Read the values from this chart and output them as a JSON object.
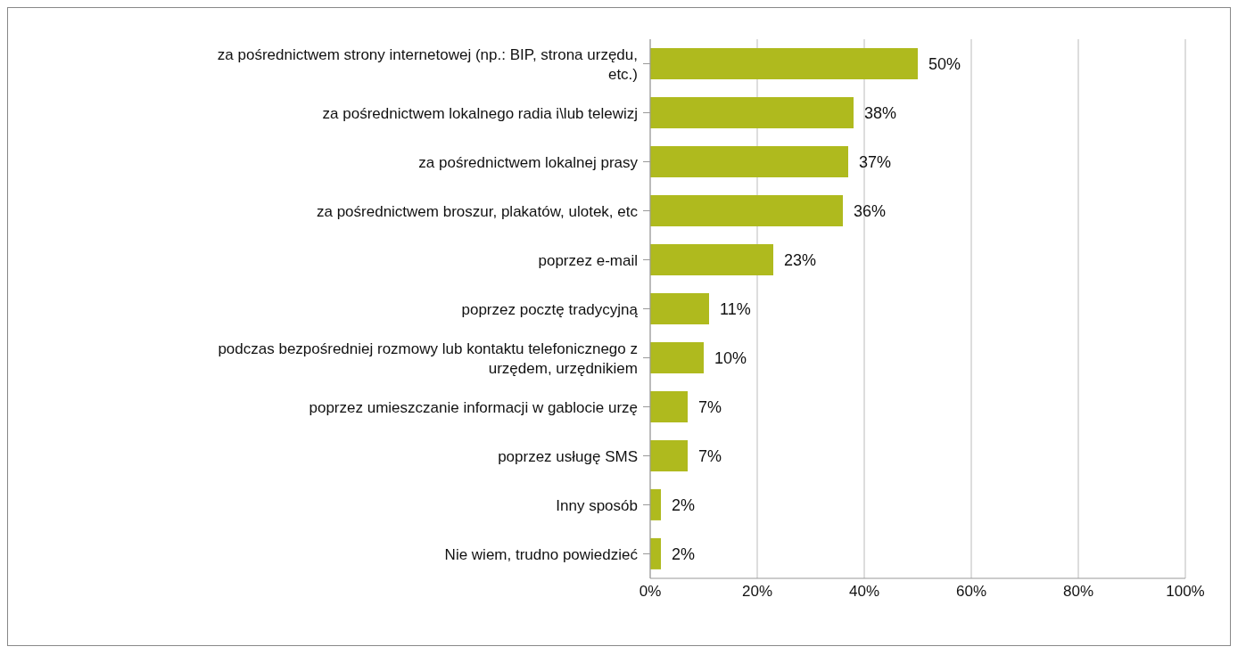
{
  "chart_data": {
    "type": "bar",
    "orientation": "horizontal",
    "categories": [
      "za pośrednictwem strony internetowej (np.: BIP, strona urzędu, etc.)",
      "za pośrednictwem lokalnego radia i\\lub telewizj",
      "za pośrednictwem lokalnej prasy",
      "za pośrednictwem broszur, plakatów, ulotek, etc",
      "poprzez e-mail",
      "poprzez pocztę tradycyjną",
      "podczas bezpośredniej rozmowy lub kontaktu telefonicznego z urzędem, urzędnikiem",
      "poprzez umieszczanie informacji w gablocie urzę",
      "poprzez usługę SMS",
      "Inny sposób",
      "Nie wiem, trudno powiedzieć"
    ],
    "values": [
      50,
      38,
      37,
      36,
      23,
      11,
      10,
      7,
      7,
      2,
      2
    ],
    "value_labels": [
      "50%",
      "38%",
      "37%",
      "36%",
      "23%",
      "11%",
      "10%",
      "7%",
      "7%",
      "2%",
      "2%"
    ],
    "color": "#afba1e",
    "xlim": [
      0,
      100
    ],
    "xticks": [
      {
        "value": 0,
        "label": "0%"
      },
      {
        "value": 20,
        "label": "20%"
      },
      {
        "value": 40,
        "label": "40%"
      },
      {
        "value": 60,
        "label": "60%"
      },
      {
        "value": 80,
        "label": "80%"
      },
      {
        "value": 100,
        "label": "100%"
      }
    ],
    "grid": "x"
  }
}
